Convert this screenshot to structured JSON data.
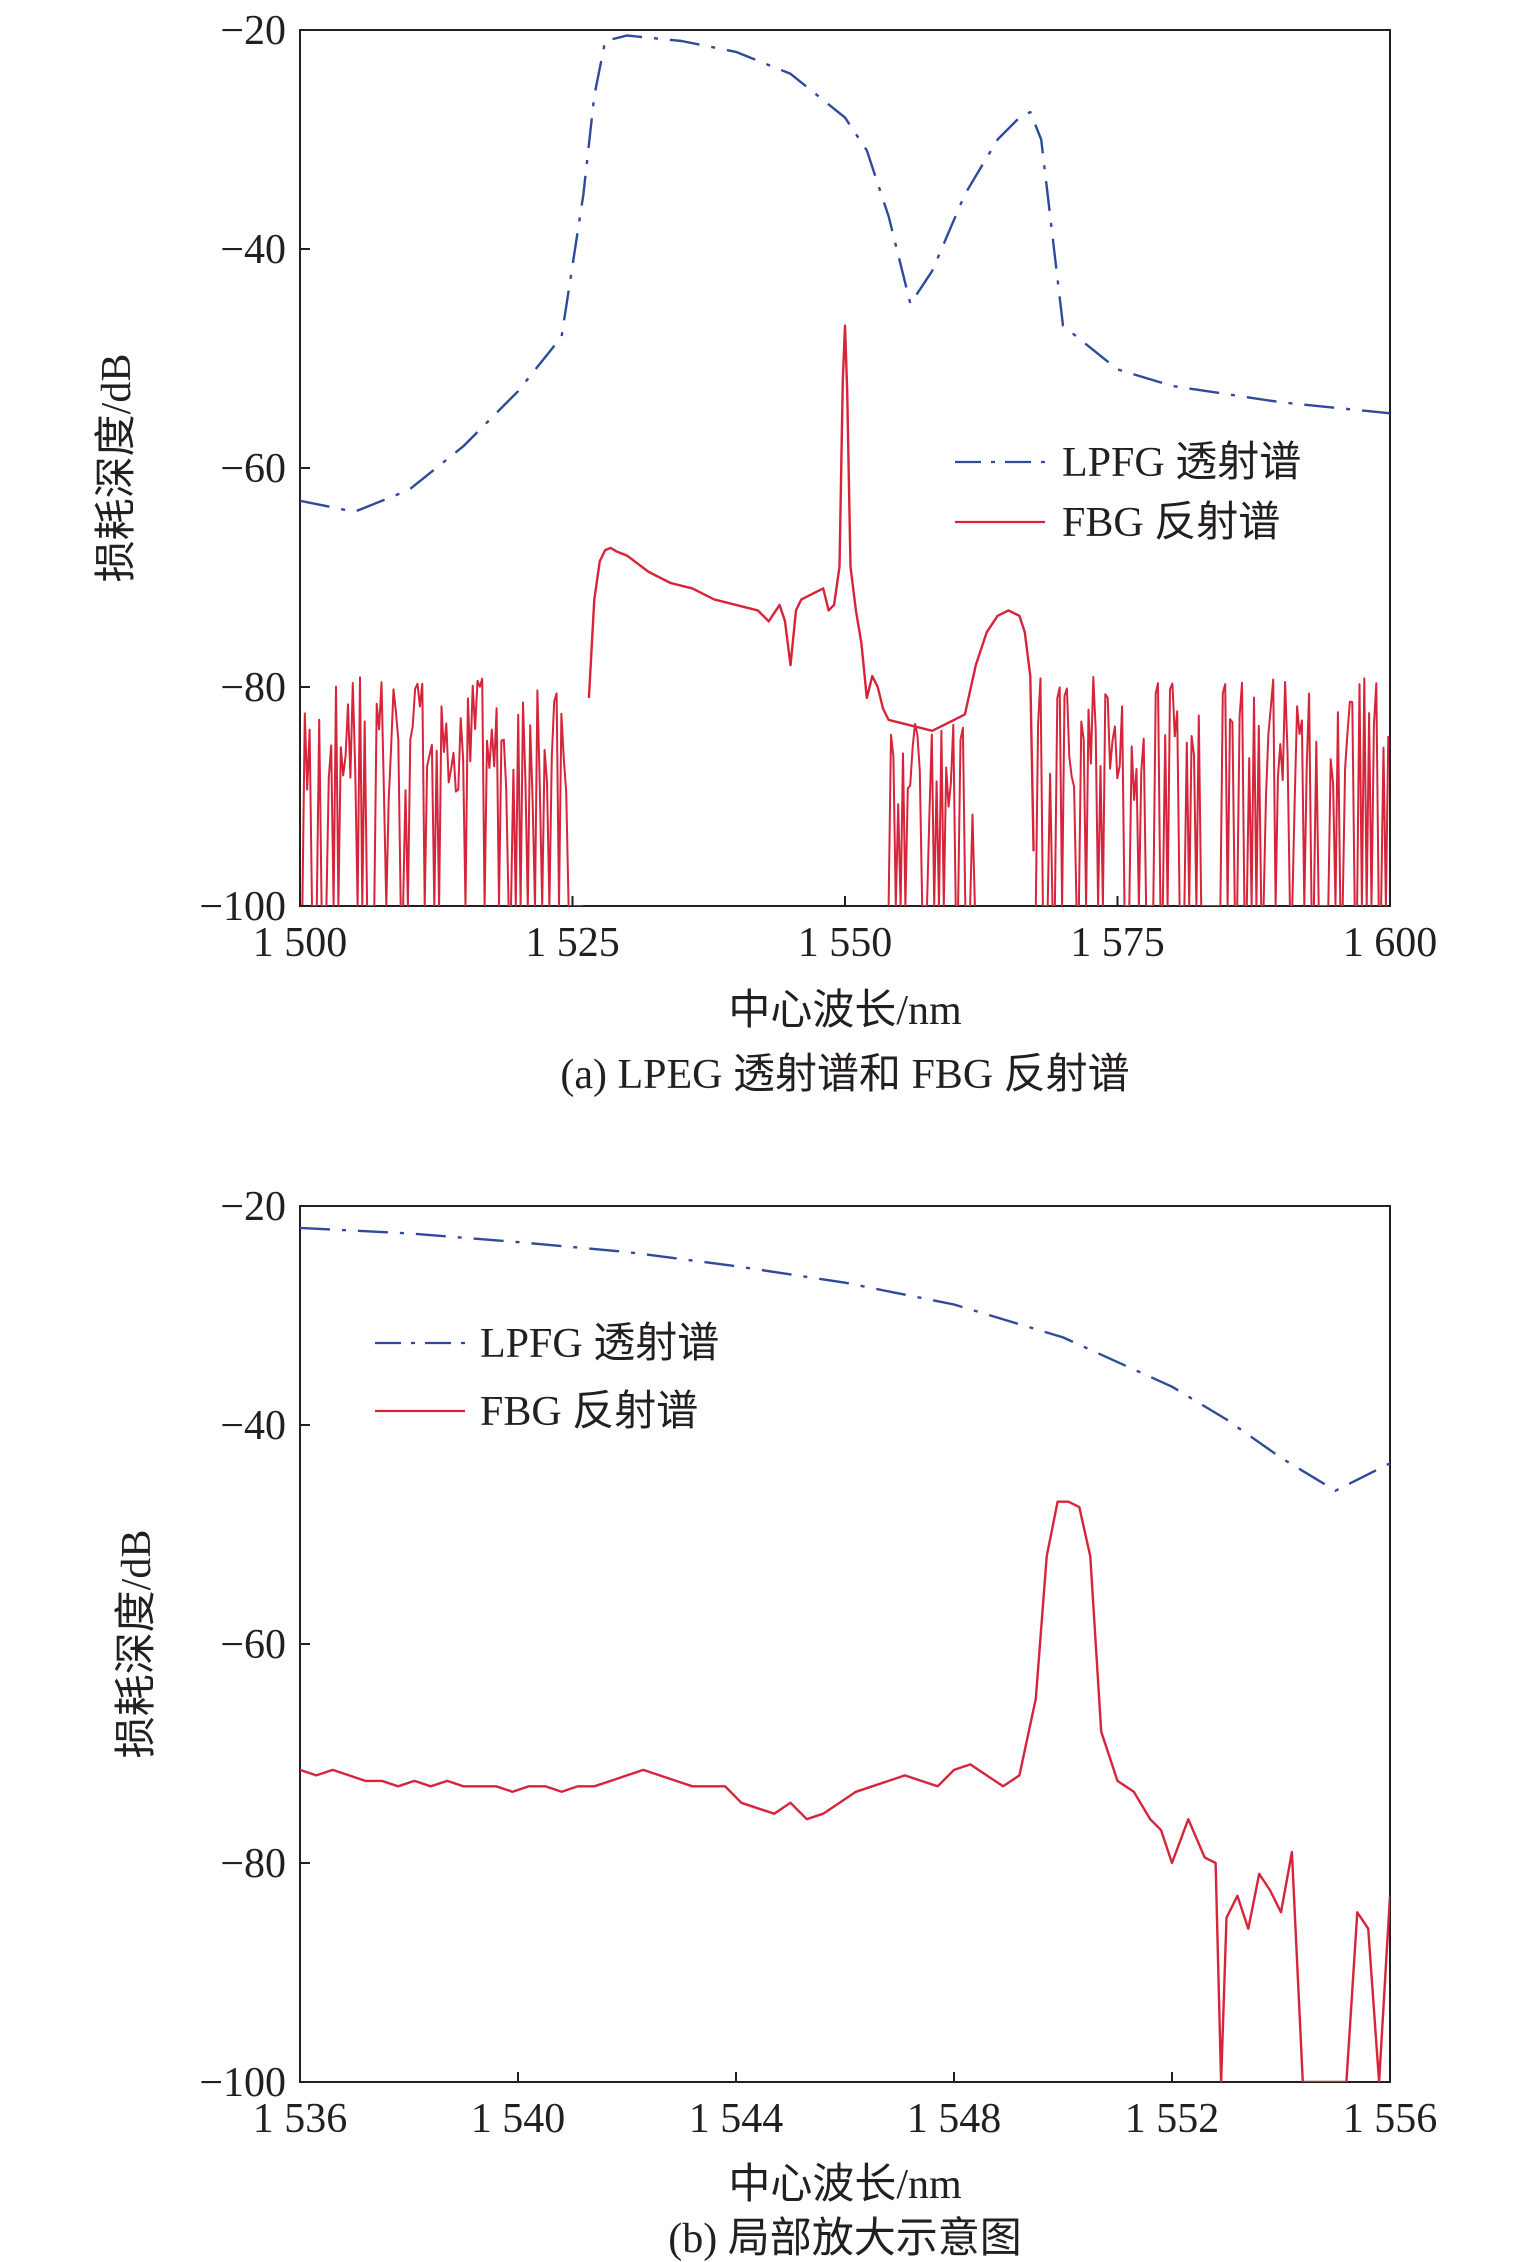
{
  "chart_data": [
    {
      "type": "line",
      "caption": "(a) LPEG 透射谱和 FBG 反射谱",
      "xlabel": "中心波长/nm",
      "ylabel": "损耗深度/dB",
      "xlim": [
        1500,
        1600
      ],
      "ylim": [
        -100,
        -20
      ],
      "xticks": [
        1500,
        1525,
        1550,
        1575,
        1600
      ],
      "xtick_labels": [
        "1 500",
        "1 525",
        "1 550",
        "1 575",
        "1 600"
      ],
      "yticks": [
        -100,
        -80,
        -60,
        -40,
        -20
      ],
      "ytick_labels": [
        "−100",
        "−80",
        "−60",
        "−40",
        "−20"
      ],
      "legend_position": "center-right",
      "series": [
        {
          "name": "LPFG 透射谱",
          "color": "#2e4b9b",
          "style": "dash-dot",
          "x": [
            1500,
            1505,
            1510,
            1515,
            1520,
            1524,
            1526,
            1527,
            1528,
            1530,
            1535,
            1540,
            1545,
            1550,
            1552,
            1554,
            1556,
            1558,
            1561,
            1564,
            1566,
            1567,
            1568,
            1570,
            1575,
            1580,
            1590,
            1600
          ],
          "y": [
            -63,
            -64,
            -62,
            -58,
            -53,
            -48,
            -35,
            -26,
            -21,
            -20.5,
            -21,
            -22,
            -24,
            -28,
            -31,
            -37,
            -45,
            -42,
            -35,
            -30,
            -28,
            -27.5,
            -30,
            -47,
            -51,
            -52.5,
            -54,
            -55
          ]
        },
        {
          "name": "FBG 反射谱",
          "color": "#d6243a",
          "style": "solid",
          "noise_regions": [
            {
              "x_range": [
                1500,
                1526
              ],
              "y_range": [
                -100,
                -79
              ]
            },
            {
              "x_range": [
                1554,
                1562
              ],
              "y_range": [
                -100,
                -83
              ]
            },
            {
              "x_range": [
                1567.5,
                1600
              ],
              "y_range": [
                -100,
                -79
              ]
            }
          ],
          "x": [
            1526.5,
            1527,
            1527.5,
            1528,
            1528.5,
            1529,
            1530,
            1532,
            1534,
            1536,
            1538,
            1540,
            1542,
            1543,
            1544,
            1544.5,
            1545,
            1545.5,
            1546,
            1547,
            1548,
            1548.5,
            1549,
            1549.5,
            1549.8,
            1550,
            1550.2,
            1550.5,
            1551,
            1551.5,
            1552,
            1552.5,
            1553,
            1553.5,
            1554,
            1558,
            1560,
            1561,
            1562,
            1563,
            1564,
            1565,
            1566,
            1566.5,
            1567,
            1567.3
          ],
          "y": [
            -81,
            -72,
            -68.5,
            -67.5,
            -67.3,
            -67.6,
            -68,
            -69.5,
            -70.5,
            -71,
            -72,
            -72.5,
            -73,
            -74,
            -72.5,
            -74,
            -78,
            -73,
            -72,
            -71.5,
            -71,
            -73,
            -72.5,
            -69,
            -52,
            -47,
            -53,
            -69,
            -73,
            -76,
            -81,
            -79,
            -80,
            -82,
            -83,
            -84,
            -83,
            -82.5,
            -78,
            -75,
            -73.5,
            -73,
            -73.5,
            -75,
            -79,
            -95
          ]
        }
      ]
    },
    {
      "type": "line",
      "caption": "(b) 局部放大示意图",
      "xlabel": "中心波长/nm",
      "ylabel": "损耗深度/dB",
      "xlim": [
        1536,
        1556
      ],
      "ylim": [
        -100,
        -20
      ],
      "xticks": [
        1536,
        1540,
        1544,
        1548,
        1552,
        1556
      ],
      "xtick_labels": [
        "1 536",
        "1 540",
        "1 544",
        "1 548",
        "1 552",
        "1 556"
      ],
      "yticks": [
        -100,
        -80,
        -60,
        -40,
        -20
      ],
      "ytick_labels": [
        "−100",
        "−80",
        "−60",
        "−40",
        "−20"
      ],
      "legend_position": "top-left",
      "series": [
        {
          "name": "LPFG 透射谱",
          "color": "#2e4b9b",
          "style": "dash-dot",
          "x": [
            1536,
            1538,
            1540,
            1542,
            1544,
            1546,
            1548,
            1550,
            1552,
            1553,
            1554,
            1555,
            1556
          ],
          "y": [
            -22,
            -22.5,
            -23.3,
            -24.2,
            -25.5,
            -27,
            -29,
            -32,
            -36.5,
            -39.5,
            -43,
            -46,
            -43.5
          ]
        },
        {
          "name": "FBG 反射谱",
          "color": "#d6243a",
          "style": "solid",
          "x": [
            1536,
            1536.3,
            1536.6,
            1536.9,
            1537.2,
            1537.5,
            1537.8,
            1538.1,
            1538.4,
            1538.7,
            1539,
            1539.3,
            1539.6,
            1539.9,
            1540.2,
            1540.5,
            1540.8,
            1541.1,
            1541.4,
            1541.7,
            1542,
            1542.3,
            1542.6,
            1542.9,
            1543.2,
            1543.5,
            1543.8,
            1544.1,
            1544.4,
            1544.7,
            1545,
            1545.3,
            1545.6,
            1545.9,
            1546.2,
            1546.5,
            1546.8,
            1547.1,
            1547.4,
            1547.7,
            1548,
            1548.3,
            1548.6,
            1548.9,
            1549.2,
            1549.5,
            1549.7,
            1549.9,
            1550.1,
            1550.3,
            1550.5,
            1550.7,
            1551,
            1551.3,
            1551.6,
            1551.8,
            1552,
            1552.3,
            1552.6,
            1552.8,
            1552.9,
            1553,
            1553.2,
            1553.4,
            1553.6,
            1553.8,
            1554,
            1554.2,
            1554.4,
            1554.6,
            1554.8,
            1555,
            1555.2,
            1555.4,
            1555.6,
            1555.8,
            1556
          ],
          "y": [
            -71.5,
            -72,
            -71.5,
            -72,
            -72.5,
            -72.5,
            -73,
            -72.5,
            -73,
            -72.5,
            -73,
            -73,
            -73,
            -73.5,
            -73,
            -73,
            -73.5,
            -73,
            -73,
            -72.5,
            -72,
            -71.5,
            -72,
            -72.5,
            -73,
            -73,
            -73,
            -74.5,
            -75,
            -75.5,
            -74.5,
            -76,
            -75.5,
            -74.5,
            -73.5,
            -73,
            -72.5,
            -72,
            -72.5,
            -73,
            -71.5,
            -71,
            -72,
            -73,
            -72,
            -65,
            -52,
            -47,
            -47,
            -47.5,
            -52,
            -68,
            -72.5,
            -73.5,
            -76,
            -77,
            -80,
            -76,
            -79.5,
            -80,
            -100,
            -85,
            -83,
            -86,
            -81,
            -82.5,
            -84.5,
            -79,
            -100,
            -100,
            -100,
            -100,
            -100,
            -84.5,
            -86,
            -100,
            -83
          ]
        }
      ]
    }
  ]
}
